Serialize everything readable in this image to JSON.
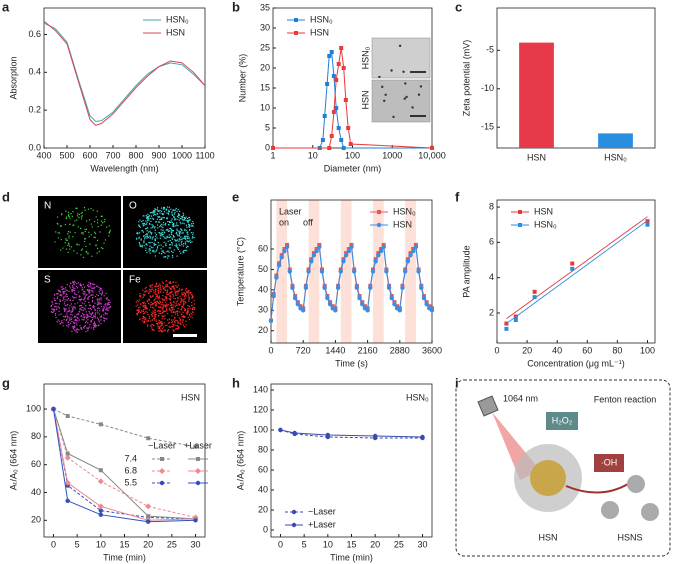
{
  "panel_labels": [
    "a",
    "b",
    "c",
    "d",
    "e",
    "f",
    "g",
    "h",
    "i"
  ],
  "chart_data": [
    {
      "type": "line",
      "xlabel": "Wavelength (nm)",
      "ylabel": "Absorption",
      "x": [
        400,
        450,
        500,
        550,
        600,
        625,
        650,
        700,
        750,
        800,
        850,
        900,
        950,
        1000,
        1050,
        1100
      ],
      "series": [
        {
          "name": "HSN₀",
          "color": "#3fa9a6",
          "values": [
            0.66,
            0.63,
            0.56,
            0.36,
            0.17,
            0.14,
            0.145,
            0.19,
            0.26,
            0.33,
            0.39,
            0.43,
            0.45,
            0.44,
            0.39,
            0.33
          ]
        },
        {
          "name": "HSN",
          "color": "#d9435a",
          "values": [
            0.67,
            0.62,
            0.55,
            0.35,
            0.15,
            0.12,
            0.13,
            0.18,
            0.25,
            0.32,
            0.38,
            0.43,
            0.46,
            0.45,
            0.4,
            0.33
          ]
        }
      ],
      "xlim": [
        400,
        1100
      ],
      "xticks": [
        400,
        500,
        600,
        700,
        800,
        900,
        1000,
        1100
      ],
      "ylim": [
        0,
        0.74
      ],
      "yticks": [
        {
          "value": 0,
          "label": "0.0"
        },
        0.2,
        0.4,
        0.6
      ],
      "legend": "upper right"
    },
    {
      "type": "line",
      "xlabel": "Diameter (nm)",
      "ylabel": "Number (%)",
      "xlog": true,
      "series": [
        {
          "name": "HSN₀",
          "color": "#1f7fd6",
          "marker": "square",
          "x": [
            1,
            15,
            18,
            20,
            23,
            26,
            30,
            34,
            39,
            45,
            52,
            60,
            10000
          ],
          "values": [
            0,
            0,
            2,
            8,
            16,
            23,
            24,
            18,
            10,
            5,
            2,
            0,
            0
          ]
        },
        {
          "name": "HSN",
          "color": "#e83a3a",
          "marker": "square",
          "x": [
            1,
            26,
            30,
            34,
            39,
            45,
            52,
            60,
            68,
            78,
            90,
            10000
          ],
          "values": [
            0,
            0,
            3,
            9,
            17,
            21,
            25,
            20,
            12,
            5,
            1,
            0
          ]
        }
      ],
      "xlim": [
        1,
        10000
      ],
      "xticks": [
        1,
        10,
        100,
        1000,
        {
          "value": 10000,
          "label": "10,000"
        }
      ],
      "ylim": [
        0,
        35
      ],
      "yticks": [
        0,
        5,
        10,
        15,
        20,
        25,
        30,
        35
      ],
      "legend": "upper left",
      "inset_labels": [
        "HSN₀",
        "HSN"
      ]
    },
    {
      "type": "bar",
      "ylabel": "Zeta potential (mV)",
      "categories": [
        "HSN",
        "HSN₀"
      ],
      "values": [
        -4.0,
        -15.8
      ],
      "colors": [
        "#e8394a",
        "#2a8ee0"
      ],
      "ylim": [
        -17.7,
        0.5
      ],
      "yticks": [
        -15,
        -10,
        -5
      ]
    },
    {
      "type": "line",
      "xlabel": "Time (s)",
      "ylabel": "Temperature (°C)",
      "x": [
        0,
        60,
        120,
        180,
        240,
        300,
        360,
        420,
        480,
        540,
        600,
        660,
        720,
        780,
        840,
        900,
        960,
        1020,
        1080,
        1140,
        1200,
        1260,
        1320,
        1380,
        1440,
        1500,
        1560,
        1620,
        1680,
        1740,
        1800,
        1860,
        1920,
        1980,
        2040,
        2100,
        2160,
        2220,
        2280,
        2340,
        2400,
        2460,
        2520,
        2580,
        2640,
        2700,
        2760,
        2820,
        2880,
        2940,
        3000,
        3060,
        3120,
        3180,
        3240,
        3300,
        3360,
        3420,
        3480,
        3540,
        3600
      ],
      "series": [
        {
          "name": "HSN₀",
          "color": "#e05a5a",
          "marker": "square",
          "values": [
            25,
            38,
            47,
            53,
            57,
            60,
            62,
            50,
            42,
            37,
            34,
            32,
            31,
            42,
            50,
            55,
            58,
            60,
            62,
            50,
            42,
            37,
            34,
            32,
            31,
            42,
            50,
            55,
            58,
            60,
            62,
            50,
            42,
            37,
            34,
            32,
            31,
            42,
            50,
            55,
            58,
            60,
            62,
            50,
            42,
            37,
            34,
            32,
            31,
            42,
            50,
            55,
            58,
            60,
            62,
            50,
            42,
            37,
            34,
            32,
            31
          ]
        },
        {
          "name": "HSN",
          "color": "#3a8ee6",
          "marker": "circle",
          "values": [
            25,
            37,
            46,
            52,
            56,
            59,
            61,
            49,
            41,
            36,
            33,
            31,
            30,
            41,
            49,
            54,
            57,
            59,
            61,
            49,
            41,
            36,
            33,
            31,
            30,
            41,
            49,
            54,
            57,
            59,
            61,
            49,
            41,
            36,
            33,
            31,
            30,
            41,
            49,
            54,
            57,
            59,
            61,
            49,
            41,
            36,
            33,
            31,
            30,
            41,
            49,
            54,
            57,
            59,
            61,
            49,
            41,
            36,
            33,
            31,
            30
          ]
        }
      ],
      "shaded": [
        [
          120,
          360
        ],
        [
          840,
          1080
        ],
        [
          1560,
          1800
        ],
        [
          2280,
          2520
        ],
        [
          3000,
          3240
        ]
      ],
      "xlim": [
        0,
        3600
      ],
      "xticks": [
        0,
        720,
        1440,
        2160,
        2880,
        3600
      ],
      "ylim": [
        14,
        84
      ],
      "yticks": [
        20,
        30,
        40,
        50,
        60
      ],
      "legend": "upper right",
      "annotations": [
        "Laser",
        "on",
        "off"
      ]
    },
    {
      "type": "scatter",
      "xlabel": "Concentration (μg mL⁻¹)",
      "ylabel": "PA amplitude",
      "x": [
        6.25,
        12.5,
        25,
        50,
        100
      ],
      "series": [
        {
          "name": "HSN",
          "color": "#e0393e",
          "values": [
            1.4,
            1.8,
            3.2,
            4.8,
            7.2
          ]
        },
        {
          "name": "HSN₀",
          "color": "#2a8ee0",
          "values": [
            1.1,
            1.6,
            2.9,
            4.5,
            7.0
          ]
        }
      ],
      "xlim": [
        0,
        105
      ],
      "xticks": [
        0,
        20,
        40,
        60,
        80,
        100
      ],
      "ylim": [
        0.3,
        8.4
      ],
      "yticks": [
        2,
        4,
        6,
        8
      ],
      "legend": "upper left"
    },
    {
      "type": "line",
      "xlabel": "Time (min)",
      "ylabel": "Aₜ/A₀ (664 nm)",
      "x": [
        0,
        3,
        10,
        20,
        30
      ],
      "series": [
        {
          "name": "7.4",
          "color": "#888888",
          "marker": "square",
          "dash": true,
          "values": [
            100,
            95,
            89,
            79,
            73
          ]
        },
        {
          "name": "6.8",
          "color": "#f08a8a",
          "marker": "diamond",
          "dash": true,
          "values": [
            100,
            65,
            48,
            30,
            22
          ]
        },
        {
          "name": "5.5",
          "color": "#3050c0",
          "marker": "circle",
          "dash": true,
          "values": [
            100,
            45,
            27,
            22,
            21
          ]
        },
        {
          "name": "7.4",
          "color": "#888888",
          "marker": "square",
          "values": [
            100,
            68,
            56,
            23,
            21
          ]
        },
        {
          "name": "6.8",
          "color": "#f08a8a",
          "marker": "diamond",
          "values": [
            100,
            47,
            30,
            20,
            21
          ]
        },
        {
          "name": "5.5",
          "color": "#3050c0",
          "marker": "circle",
          "values": [
            100,
            34,
            24,
            19,
            20
          ]
        }
      ],
      "legend_columns": [
        "−Laser",
        "+Laser"
      ],
      "xlim": [
        -2,
        32
      ],
      "xticks": [
        0,
        5,
        10,
        15,
        20,
        25,
        30
      ],
      "ylim": [
        8,
        118
      ],
      "yticks": [
        20,
        40,
        60,
        80,
        100
      ],
      "annotations": [
        "HSN"
      ]
    },
    {
      "type": "line",
      "xlabel": "Time (min)",
      "ylabel": "Aₜ/A₀ (664 nm)",
      "x": [
        0,
        3,
        10,
        20,
        30
      ],
      "series": [
        {
          "name": "−Laser",
          "color": "#3a4ab0",
          "marker": "circle",
          "dash": true,
          "values": [
            100,
            96,
            93,
            92,
            92
          ]
        },
        {
          "name": "+Laser",
          "color": "#3a4ab0",
          "marker": "circle",
          "values": [
            100,
            97,
            95,
            94,
            93
          ]
        }
      ],
      "xlim": [
        -2,
        32
      ],
      "xticks": [
        0,
        5,
        10,
        15,
        20,
        25,
        30
      ],
      "ylim": [
        -7,
        146
      ],
      "yticks": [
        0,
        20,
        40,
        60,
        80,
        100,
        120,
        140
      ],
      "legend": "lower left",
      "annotations": [
        "HSN₀"
      ]
    }
  ],
  "mapping": {
    "elements": [
      "N",
      "O",
      "S",
      "Fe"
    ]
  },
  "diagram": {
    "wavelength": "1064 nm",
    "oxidant": "H₂O₂",
    "reaction": "Fenton reaction",
    "radical": "·OH",
    "left_label": "HSN",
    "right_label": "HSNS"
  }
}
